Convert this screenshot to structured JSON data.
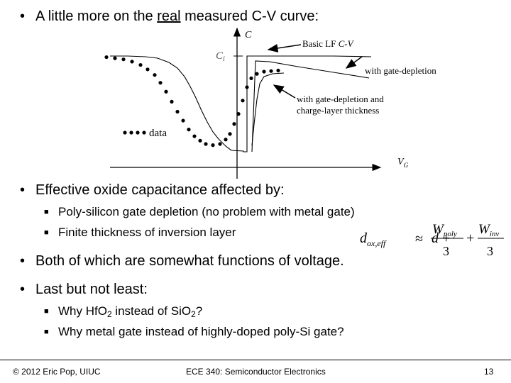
{
  "bullets": {
    "b1_before": "A little more on the ",
    "b1_underlined": "real",
    "b1_after": " measured C-V curve:",
    "b2": "Effective oxide capacitance affected by:",
    "b2_sub1": "Poly-silicon gate depletion (no problem with metal gate)",
    "b2_sub2": "Finite thickness of inversion layer",
    "b3": "Both of which are somewhat functions of voltage.",
    "b4": "Last but not least:",
    "b4_sub1_a": "Why HfO",
    "b4_sub1_sub1": "2",
    "b4_sub1_b": " instead of SiO",
    "b4_sub1_sub2": "2",
    "b4_sub1_c": "?",
    "b4_sub2": "Why metal gate instead of highly-doped poly-Si gate?",
    "bullet_glyph": "•",
    "sub_glyph": "■"
  },
  "figure": {
    "y_axis_label": "C",
    "x_axis_label_main": "V",
    "x_axis_label_sub": "G",
    "ci_label": "C",
    "ci_sub": "i",
    "legend_label": "data",
    "annot_basic_a": "Basic LF ",
    "annot_basic_b": "C-V",
    "annot_gate_depletion": "with gate-depletion",
    "annot_charge_layer_1": "with gate-depletion and",
    "annot_charge_layer_2": "charge-layer thickness",
    "data_points": [
      [
        -4.6,
        0.99
      ],
      [
        -4.3,
        0.98
      ],
      [
        -4.0,
        0.97
      ],
      [
        -3.7,
        0.95
      ],
      [
        -3.4,
        0.92
      ],
      [
        -3.15,
        0.88
      ],
      [
        -2.9,
        0.83
      ],
      [
        -2.7,
        0.76
      ],
      [
        -2.5,
        0.68
      ],
      [
        -2.3,
        0.59
      ],
      [
        -2.1,
        0.5
      ],
      [
        -1.9,
        0.42
      ],
      [
        -1.7,
        0.34
      ],
      [
        -1.5,
        0.28
      ],
      [
        -1.3,
        0.24
      ],
      [
        -1.1,
        0.21
      ],
      [
        -0.85,
        0.2
      ],
      [
        -0.6,
        0.21
      ],
      [
        -0.4,
        0.25
      ],
      [
        -0.25,
        0.3
      ],
      [
        -0.1,
        0.39
      ],
      [
        0.05,
        0.48
      ],
      [
        0.2,
        0.6
      ],
      [
        0.35,
        0.72
      ],
      [
        0.5,
        0.8
      ],
      [
        0.7,
        0.84
      ],
      [
        0.95,
        0.86
      ],
      [
        1.2,
        0.865
      ],
      [
        1.45,
        0.87
      ]
    ],
    "legend_dots": 4
  },
  "formula": {
    "lhs_main": "d",
    "lhs_sub": "ox,eff",
    "approx": "≈",
    "d": "d",
    "plus": "+",
    "w_main": "W",
    "w_poly_sub": "poly",
    "w_inv_sub": "inv",
    "den": "3"
  },
  "footer": {
    "left": "© 2012 Eric Pop, UIUC",
    "center": "ECE 340: Semiconductor Electronics",
    "right": "13"
  }
}
